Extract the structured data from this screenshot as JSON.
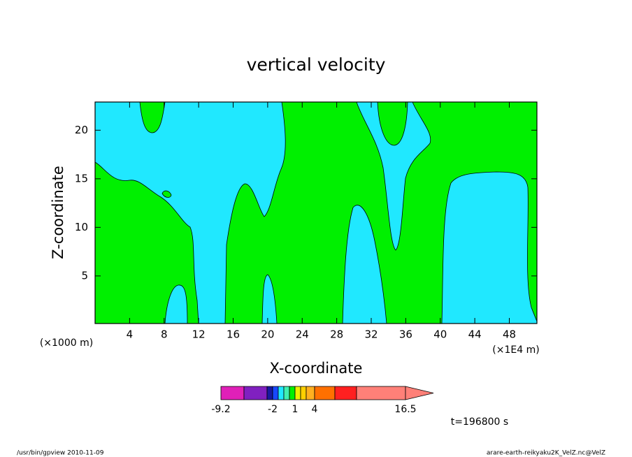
{
  "chart_data": {
    "type": "contour",
    "title": "vertical velocity",
    "x_label": "X-coordinate",
    "y_label": "Z-coordinate",
    "x_unit": "(×1000 m)",
    "x_scale_note": "(×1E4 m)",
    "xlim": [
      0,
      51.2
    ],
    "ylim": [
      0.1,
      22.9
    ],
    "xticks": [
      4,
      8,
      12,
      16,
      20,
      24,
      28,
      32,
      36,
      40,
      44,
      48
    ],
    "yticks": [
      5,
      10,
      15,
      20
    ],
    "colorbar": {
      "colors": [
        "#e020b8",
        "#8020c0",
        "#1818a0",
        "#1848ff",
        "#20e8ff",
        "#40f0b0",
        "#00f000",
        "#f0f000",
        "#ffd000",
        "#ffb020",
        "#ff7000",
        "#ff2020",
        "#ff8078"
      ],
      "ticks": [
        -9.2,
        -2,
        1,
        4,
        16.5
      ]
    },
    "time_label": "t=196800 s",
    "footer_left": "/usr/bin/gpview   2010-11-09",
    "footer_right": "arare-earth-reikyaku2K_VelZ.nc@VelZ"
  }
}
